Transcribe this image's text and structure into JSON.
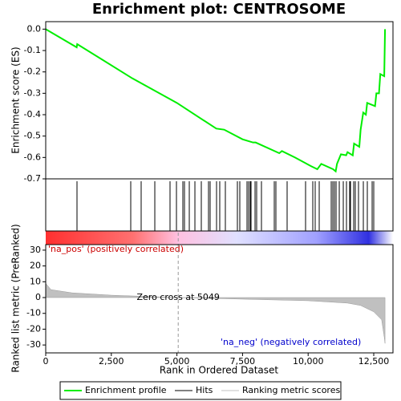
{
  "chart_data": [
    {
      "type": "line",
      "title": "Enrichment plot: CENTROSOME",
      "ylabel": "Enrichment score (ES)",
      "series": [
        {
          "name": "Enrichment profile",
          "color": "#00ee00",
          "x": [
            0,
            1180,
            1200,
            3300,
            5000,
            6500,
            6800,
            7500,
            7900,
            8000,
            8900,
            9000,
            9500,
            10100,
            10350,
            10500,
            10950,
            11050,
            11100,
            11250,
            11450,
            11500,
            11700,
            11750,
            11950,
            12000,
            12100,
            12200,
            12250,
            12550,
            12600,
            12700,
            12750,
            12900,
            12930
          ],
          "values": [
            0,
            -0.085,
            -0.07,
            -0.23,
            -0.345,
            -0.465,
            -0.47,
            -0.515,
            -0.53,
            -0.53,
            -0.58,
            -0.57,
            -0.6,
            -0.64,
            -0.655,
            -0.63,
            -0.655,
            -0.665,
            -0.63,
            -0.585,
            -0.59,
            -0.575,
            -0.59,
            -0.535,
            -0.55,
            -0.47,
            -0.39,
            -0.4,
            -0.345,
            -0.36,
            -0.3,
            -0.3,
            -0.21,
            -0.22,
            0.0
          ]
        }
      ],
      "hits": {
        "name": "Hits",
        "color": "#000000",
        "x": [
          1192,
          3240,
          3637,
          4157,
          4737,
          4982,
          5226,
          5287,
          5471,
          5685,
          5929,
          6204,
          6265,
          6510,
          6632,
          6846,
          7304,
          7396,
          7671,
          7732,
          7793,
          7824,
          7977,
          8038,
          8221,
          8710,
          8771,
          9199,
          9902,
          10177,
          10269,
          10422,
          10880,
          10941,
          11002,
          11064,
          11186,
          11339,
          11461,
          11583,
          11614,
          11736,
          11797,
          11919,
          12103,
          12255,
          12439,
          12500
        ]
      },
      "xlim": [
        0,
        13233
      ],
      "ylim": [
        -0.7,
        0.035
      ],
      "yticks": [
        {
          "value": 0,
          "label": "0.0"
        },
        -0.1,
        -0.2,
        -0.3,
        -0.4,
        -0.5,
        -0.6,
        -0.7
      ]
    },
    {
      "type": "area",
      "xlabel": "Rank in Ordered Dataset",
      "ylabel": "Ranked list metric (PreRanked)",
      "series": [
        {
          "name": "Ranking metric scores",
          "color": "#c0c0c0",
          "x": [
            0,
            200,
            1000,
            2500,
            5049,
            7500,
            10000,
            11500,
            12000,
            12500,
            12800,
            12900,
            12930
          ],
          "values": [
            9,
            5,
            3,
            1.5,
            0,
            -1,
            -2,
            -3.5,
            -5,
            -9,
            -14,
            -25,
            -29
          ]
        }
      ],
      "xlim": [
        0,
        13233
      ],
      "ylim": [
        -35,
        33.5
      ],
      "xticks": [
        0,
        {
          "value": 2500,
          "label": "2,500"
        },
        {
          "value": 5000,
          "label": "5,000"
        },
        {
          "value": 7500,
          "label": "7,500"
        },
        {
          "value": 10000,
          "label": "10,000"
        },
        {
          "value": 12500,
          "label": "12,500"
        }
      ],
      "yticks": [
        30,
        20,
        10,
        0,
        -10,
        -20,
        -30
      ],
      "zero_cross": {
        "value": 5049,
        "label": "Zero cross at 5049"
      },
      "pos_label": "'na_pos' (positively correlated)",
      "neg_label": "'na_neg' (negatively correlated)"
    }
  ]
}
